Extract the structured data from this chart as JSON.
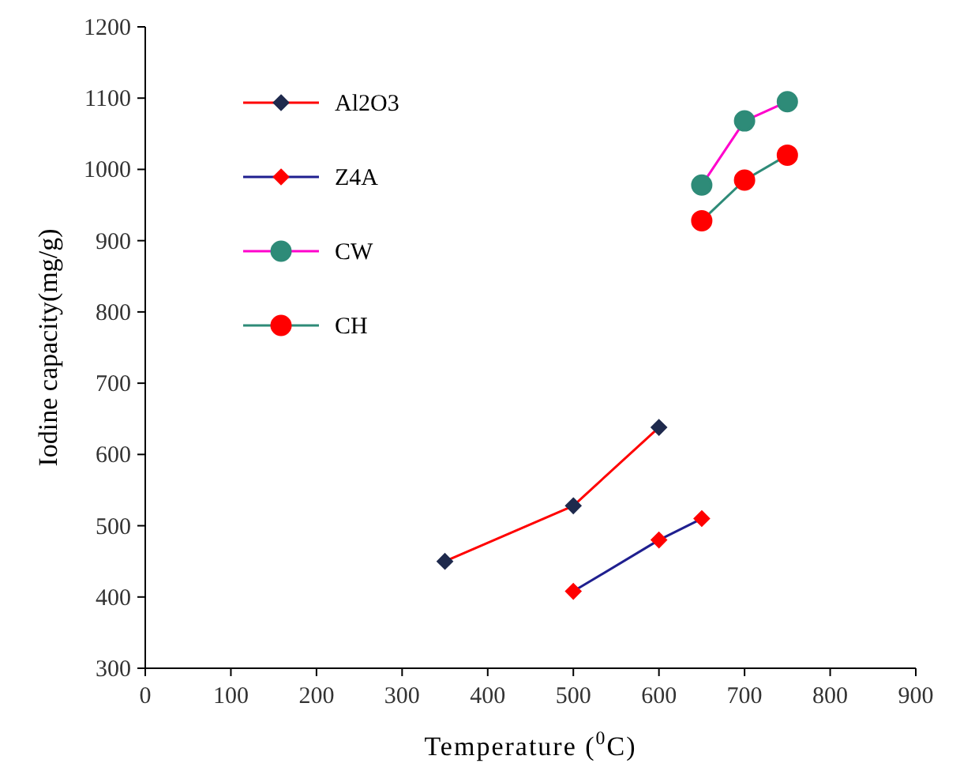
{
  "chart_data": {
    "type": "line",
    "xlabel": "Temperature ($^{0}$C)",
    "ylabel": "Iodine capacity(mg/g)",
    "xlim": [
      0,
      900
    ],
    "xticks": [
      0,
      100,
      200,
      300,
      400,
      500,
      600,
      700,
      800,
      900
    ],
    "ylim": [
      300,
      1200
    ],
    "yticks": [
      300,
      400,
      500,
      600,
      700,
      800,
      900,
      1000,
      1100,
      1200
    ],
    "legend": "top left",
    "grid": false,
    "series": [
      {
        "name": "Al2O3",
        "color": "#ff0000",
        "marker": "diamond",
        "colors": [
          "#1f2a4d",
          "#1f2a4d",
          "#1f2a4d"
        ],
        "x": [
          350,
          500,
          600
        ],
        "values": [
          450,
          528,
          638
        ]
      },
      {
        "name": "Z4A",
        "color": "#1f1f8f",
        "marker": "diamond",
        "colors": [
          "#ff0000",
          "#ff0000",
          "#ff0000"
        ],
        "x": [
          500,
          600,
          650
        ],
        "values": [
          408,
          480,
          510
        ]
      },
      {
        "name": "CW",
        "color": "#ff00cc",
        "marker": "circle",
        "colors": [
          "#2e8b78",
          "#2e8b78",
          "#2e8b78"
        ],
        "x": [
          650,
          700,
          750
        ],
        "values": [
          978,
          1068,
          1095
        ]
      },
      {
        "name": "CH",
        "color": "#2e8b78",
        "marker": "circle",
        "colors": [
          "#ff0000",
          "#ff0000",
          "#ff0000"
        ],
        "x": [
          650,
          700,
          750
        ],
        "values": [
          928,
          985,
          1020
        ]
      }
    ]
  }
}
